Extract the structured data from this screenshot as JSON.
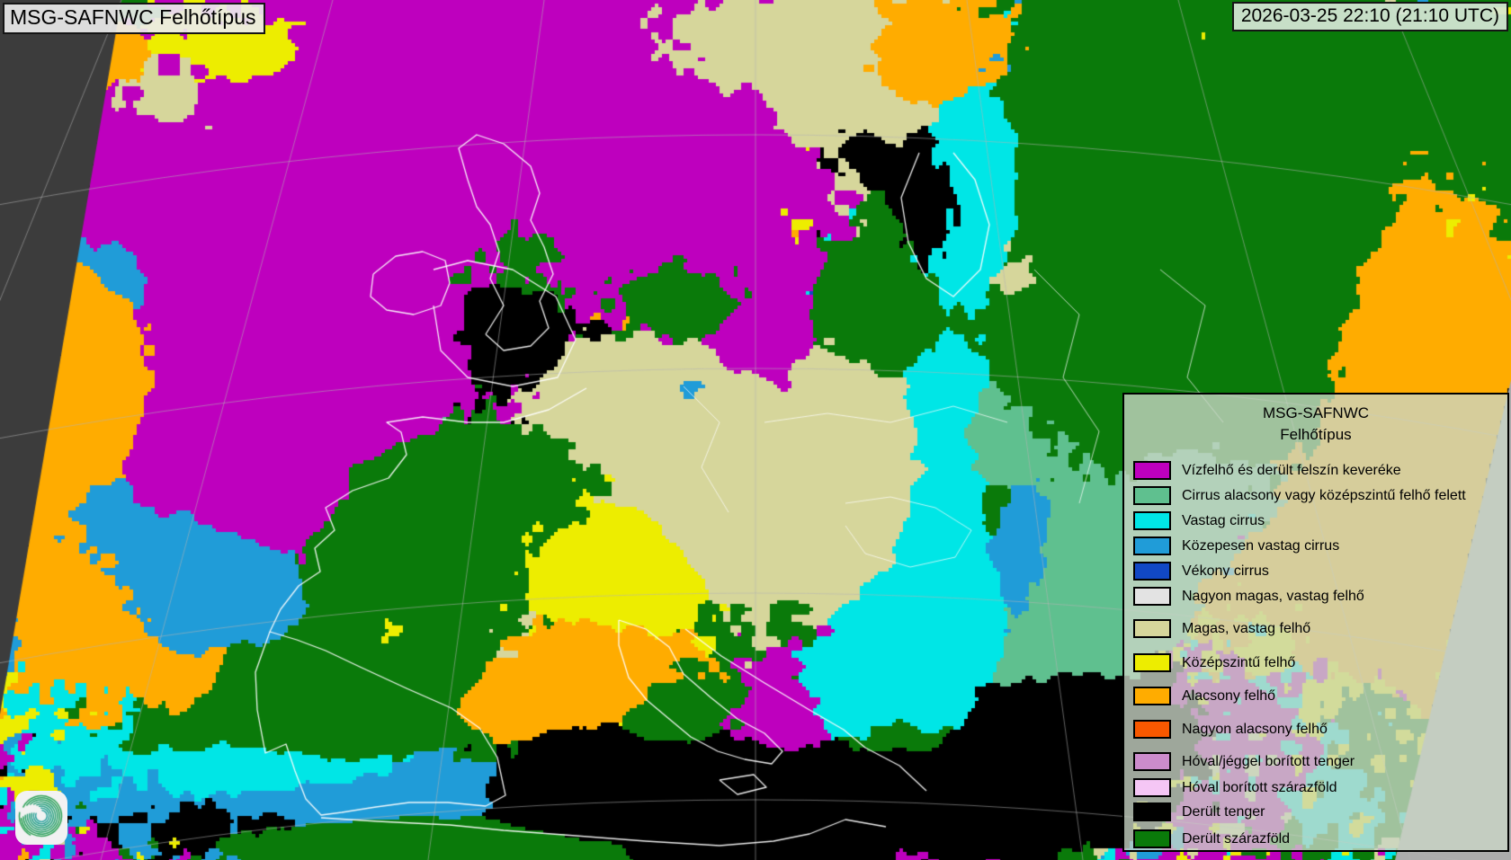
{
  "header": {
    "title": "MSG-SAFNWC Felhőtípus",
    "timestamp": "2026-03-25 22:10 (21:10 UTC)"
  },
  "legend": {
    "title_line1": "MSG-SAFNWC",
    "title_line2": "Felhőtípus",
    "items": [
      {
        "label": "Vízfelhő és derült felszín keveréke",
        "color": "#BE00BE"
      },
      {
        "label": "Cirrus alacsony vagy középszintű felhő felett",
        "color": "#5FC08F"
      },
      {
        "label": "Vastag cirrus",
        "color": "#00E6E6"
      },
      {
        "label": "Közepesen vastag cirrus",
        "color": "#209CD8"
      },
      {
        "label": "Vékony cirrus",
        "color": "#1148C4"
      },
      {
        "label": "Nagyon magas, vastag felhő",
        "color": "#E3E3E3"
      },
      {
        "label": "Magas, vastag felhő",
        "color": "#D6D69B"
      },
      {
        "label": "Középszintű felhő",
        "color": "#EDED00"
      },
      {
        "label": "Alacsony felhő",
        "color": "#FFAC00"
      },
      {
        "label": "Nagyon alacsony felhő",
        "color": "#F85800"
      },
      {
        "label": "Hóval/jéggel borított tenger",
        "color": "#CC8CCC"
      },
      {
        "label": "Hóval borított szárazföld",
        "color": "#F5C6F5"
      },
      {
        "label": "Derült tenger",
        "color": "#000000"
      },
      {
        "label": "Derült szárazföld",
        "color": "#0A7A0A"
      }
    ]
  },
  "map": {
    "out_of_coverage_dark": "#3C3C3C",
    "out_of_coverage_light": "#ACACAC",
    "coastline_color": "#FFFFFF",
    "graticule_color": "#B4B4B4"
  },
  "logo": {
    "name": "met-spiral-logo",
    "color_start": "#2FA257",
    "color_end": "#2FA3A0"
  }
}
